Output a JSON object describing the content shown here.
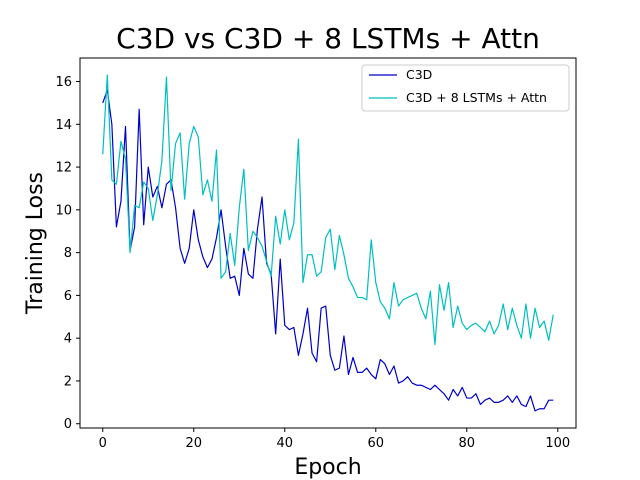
{
  "chart_data": {
    "type": "line",
    "title": "C3D vs C3D + 8 LSTMs + Attn",
    "xlabel": "Epoch",
    "ylabel": "Training Loss",
    "xlim": [
      -5,
      104
    ],
    "ylim": [
      -0.2,
      17.1
    ],
    "xticks": [
      0,
      20,
      40,
      60,
      80,
      100
    ],
    "yticks": [
      0,
      2,
      4,
      6,
      8,
      10,
      12,
      14,
      16
    ],
    "legend_position": "top-right",
    "grid": false,
    "series": [
      {
        "name": "C3D",
        "color": "#0000cc",
        "values": [
          15.0,
          15.6,
          14.0,
          9.2,
          10.4,
          13.9,
          8.1,
          9.2,
          14.7,
          9.3,
          12.0,
          10.6,
          11.1,
          10.1,
          11.2,
          11.4,
          10.1,
          8.2,
          7.5,
          8.2,
          10.0,
          8.6,
          7.8,
          7.3,
          7.7,
          8.7,
          10.0,
          8.3,
          6.8,
          6.9,
          6.0,
          8.2,
          7.0,
          6.8,
          9.1,
          10.6,
          7.5,
          7.0,
          4.2,
          7.7,
          4.6,
          4.4,
          4.5,
          3.2,
          4.2,
          5.4,
          3.3,
          2.9,
          5.4,
          5.5,
          3.2,
          2.5,
          2.6,
          4.1,
          2.3,
          3.1,
          2.4,
          2.4,
          2.6,
          2.3,
          2.1,
          3.0,
          2.8,
          2.3,
          2.7,
          1.9,
          2.0,
          2.2,
          1.9,
          1.8,
          1.8,
          1.7,
          1.6,
          1.8,
          1.6,
          1.4,
          1.1,
          1.6,
          1.3,
          1.7,
          1.2,
          1.2,
          1.4,
          0.9,
          1.1,
          1.2,
          1.0,
          1.0,
          1.1,
          1.3,
          1.0,
          1.3,
          0.9,
          0.8,
          1.3,
          0.6,
          0.7,
          0.7,
          1.1,
          1.1
        ]
      },
      {
        "name": "C3D + 8 LSTMs + Attn",
        "color": "#00bfbf",
        "values": [
          12.6,
          16.3,
          11.4,
          11.2,
          13.2,
          12.4,
          8.0,
          10.2,
          10.1,
          11.3,
          11.0,
          9.5,
          10.7,
          12.3,
          16.2,
          10.9,
          13.1,
          13.6,
          10.5,
          13.1,
          13.9,
          13.4,
          10.7,
          11.4,
          10.4,
          12.8,
          6.8,
          7.1,
          8.9,
          7.4,
          10.1,
          11.9,
          8.1,
          9.0,
          8.7,
          8.3,
          7.6,
          6.9,
          9.7,
          8.4,
          10.0,
          8.6,
          9.4,
          13.3,
          6.6,
          7.9,
          7.9,
          6.9,
          7.1,
          8.7,
          9.1,
          7.2,
          8.8,
          7.9,
          6.8,
          6.4,
          5.9,
          5.9,
          5.8,
          8.6,
          6.6,
          5.7,
          5.4,
          4.9,
          6.6,
          5.5,
          5.8,
          5.9,
          6.0,
          6.1,
          5.4,
          4.9,
          6.2,
          3.7,
          6.5,
          5.3,
          6.6,
          4.5,
          5.5,
          4.7,
          4.4,
          4.6,
          4.7,
          4.5,
          4.3,
          4.8,
          4.2,
          4.6,
          5.6,
          4.4,
          5.4,
          4.6,
          4.0,
          5.6,
          4.0,
          5.4,
          4.5,
          4.8,
          3.9,
          5.1
        ]
      }
    ]
  }
}
